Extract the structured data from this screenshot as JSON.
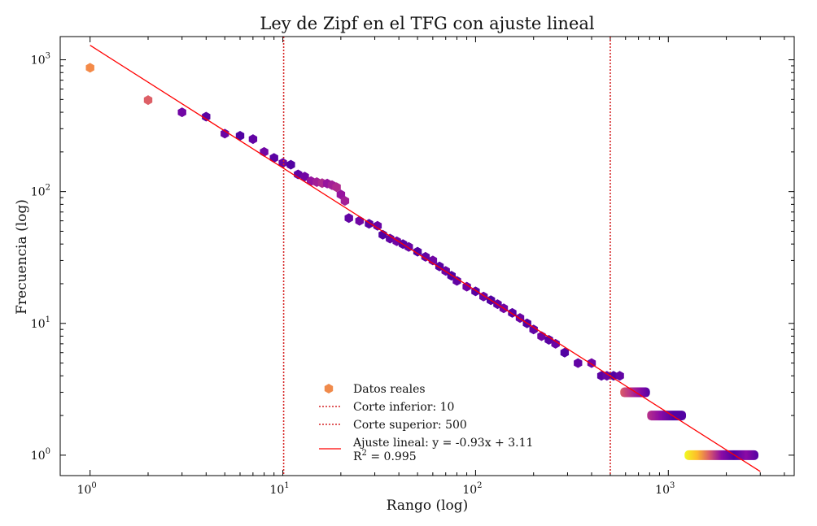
{
  "chart_data": {
    "type": "scatter",
    "title": "Ley de Zipf en el TFG con ajuste lineal",
    "xlabel": "Rango (log)",
    "ylabel": "Frecuencia (log)",
    "xscale": "log",
    "yscale": "log",
    "xlim": [
      0.7,
      4500
    ],
    "ylim": [
      0.7,
      1500
    ],
    "grid": false,
    "legend_position": "lower-center",
    "x_ticks": [
      {
        "value": 1,
        "label": "10",
        "exp": "0"
      },
      {
        "value": 10,
        "label": "10",
        "exp": "1"
      },
      {
        "value": 100,
        "label": "10",
        "exp": "2"
      },
      {
        "value": 1000,
        "label": "10",
        "exp": "3"
      }
    ],
    "y_ticks": [
      {
        "value": 1,
        "label": "10",
        "exp": "0"
      },
      {
        "value": 10,
        "label": "10",
        "exp": "1"
      },
      {
        "value": 100,
        "label": "10",
        "exp": "2"
      },
      {
        "value": 1000,
        "label": "10",
        "exp": "3"
      }
    ],
    "series": [
      {
        "name": "Datos reales",
        "kind": "points",
        "legend_color": "#f08a4b",
        "points": [
          [
            1,
            870
          ],
          [
            2,
            495
          ],
          [
            3,
            400
          ],
          [
            4,
            370
          ],
          [
            5,
            275
          ],
          [
            6,
            265
          ],
          [
            7,
            250
          ],
          [
            8,
            200
          ],
          [
            9,
            180
          ],
          [
            10,
            165
          ],
          [
            11,
            160
          ],
          [
            12,
            135
          ],
          [
            13,
            130
          ],
          [
            14,
            120
          ],
          [
            15,
            118
          ],
          [
            16,
            116
          ],
          [
            17,
            115
          ],
          [
            18,
            112
          ],
          [
            19,
            108
          ],
          [
            20,
            95
          ],
          [
            21,
            85
          ],
          [
            22,
            63
          ],
          [
            25,
            60
          ],
          [
            28,
            57
          ],
          [
            31,
            55
          ],
          [
            33,
            47
          ],
          [
            36,
            44
          ],
          [
            39,
            42
          ],
          [
            42,
            40
          ],
          [
            45,
            38
          ],
          [
            50,
            35
          ],
          [
            55,
            32
          ],
          [
            60,
            30
          ],
          [
            65,
            27
          ],
          [
            70,
            25
          ],
          [
            75,
            23
          ],
          [
            80,
            21
          ],
          [
            90,
            19
          ],
          [
            100,
            17.5
          ],
          [
            110,
            16
          ],
          [
            120,
            15
          ],
          [
            130,
            14
          ],
          [
            140,
            13
          ],
          [
            155,
            12
          ],
          [
            170,
            11
          ],
          [
            185,
            10
          ],
          [
            200,
            9
          ],
          [
            220,
            8
          ],
          [
            240,
            7.5
          ],
          [
            260,
            7
          ],
          [
            290,
            6
          ],
          [
            340,
            5
          ],
          [
            400,
            5
          ],
          [
            450,
            4
          ],
          [
            480,
            4
          ],
          [
            520,
            4
          ],
          [
            560,
            4
          ]
        ],
        "bands": [
          {
            "y": 3,
            "x_start": 580,
            "x_end": 780
          },
          {
            "y": 2,
            "x_start": 800,
            "x_end": 1200
          },
          {
            "y": 1,
            "x_start": 1250,
            "x_end": 2850
          }
        ]
      },
      {
        "name": "Corte inferior: 10",
        "kind": "vline",
        "x": 10.1,
        "color": "#d62728",
        "dash": "dotted"
      },
      {
        "name": "Corte superior: 500",
        "kind": "vline",
        "x": 500,
        "color": "#d62728",
        "dash": "dotted"
      },
      {
        "name": "Ajuste lineal: y = -0.93x + 3.11",
        "name_line2": "R",
        "name_line2_sup": "2",
        "name_line2_rest": " = 0.995",
        "kind": "fit",
        "slope": -0.93,
        "intercept": 3.11,
        "x_range": [
          1,
          3000
        ],
        "color": "#ff0000"
      }
    ],
    "colors": {
      "plasma": [
        "#0d0887",
        "#5302a3",
        "#8b0aa5",
        "#b83289",
        "#db5c68",
        "#f48849",
        "#febd2a",
        "#f0f921"
      ],
      "cut_line": "#d62728",
      "fit_line": "#ff0000"
    }
  }
}
